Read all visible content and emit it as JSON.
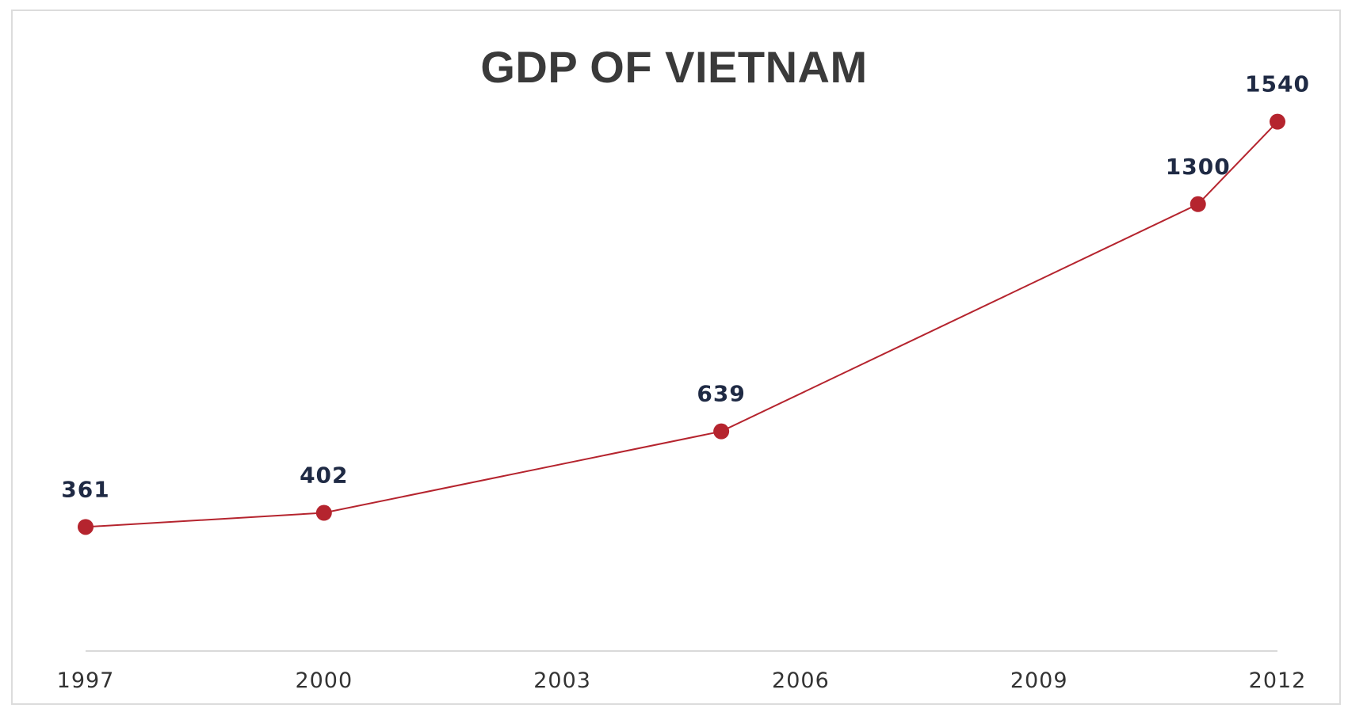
{
  "chart_data": {
    "type": "line",
    "title": "GDP OF VIETNAM",
    "xlabel": "",
    "ylabel": "",
    "x_ticks": [
      "1997",
      "2000",
      "2003",
      "2006",
      "2009",
      "2012"
    ],
    "xlim": [
      1997,
      2012
    ],
    "ylim": [
      0,
      1700
    ],
    "grid": false,
    "legend": "none",
    "series": [
      {
        "color": "#b5242e",
        "points": [
          {
            "x": 1997,
            "y": 361,
            "label": "361"
          },
          {
            "x": 2000,
            "y": 402,
            "label": "402"
          },
          {
            "x": 2005,
            "y": 639,
            "label": "639"
          },
          {
            "x": 2011,
            "y": 1300,
            "label": "1300"
          },
          {
            "x": 2012,
            "y": 1540,
            "label": "1540"
          }
        ]
      }
    ]
  }
}
